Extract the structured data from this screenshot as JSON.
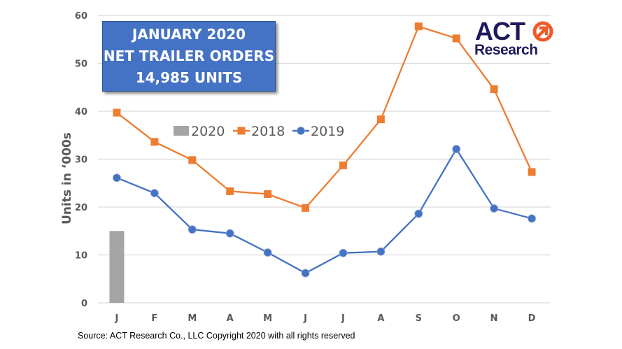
{
  "title_box": {
    "line1": "JANUARY 2020",
    "line2": "NET TRAILER ORDERS",
    "line3": "14,985 UNITS"
  },
  "logo": {
    "top": "ACT",
    "bottom": "Research",
    "navy": "#1f1a5e",
    "orange": "#f05a28"
  },
  "source": "Source: ACT Research Co., LLC  Copyright 2020 with all rights reserved",
  "colors": {
    "series_2020": "#a5a5a5",
    "series_2018": "#ed7d31",
    "series_2019": "#4472c4",
    "grid": "#d9d9d9",
    "title_box": "#4472c4"
  },
  "chart_data": {
    "type": "line",
    "title": "January 2020 Net Trailer Orders 14,985 Units",
    "xlabel": "",
    "ylabel": "Units in ‘000s",
    "categories": [
      "J",
      "F",
      "M",
      "A",
      "M",
      "J",
      "J",
      "A",
      "S",
      "O",
      "N",
      "D"
    ],
    "yticks": [
      "0",
      "10",
      "20",
      "30",
      "40",
      "50",
      "60"
    ],
    "ylim": [
      0,
      60
    ],
    "grid": true,
    "legend_position": "upper-left-inside",
    "legend": [
      "2020",
      "2018",
      "2019"
    ],
    "series": [
      {
        "name": "2020",
        "type": "bar",
        "values": [
          15.0,
          null,
          null,
          null,
          null,
          null,
          null,
          null,
          null,
          null,
          null,
          null
        ]
      },
      {
        "name": "2018",
        "type": "line",
        "marker": "square",
        "values": [
          39.7,
          33.6,
          29.8,
          23.3,
          22.7,
          19.8,
          28.7,
          38.3,
          57.7,
          55.2,
          44.6,
          27.3
        ]
      },
      {
        "name": "2019",
        "type": "line",
        "marker": "circle",
        "values": [
          26.1,
          22.9,
          15.3,
          14.5,
          10.5,
          6.2,
          10.4,
          10.7,
          18.6,
          32.1,
          19.7,
          17.6
        ]
      }
    ]
  }
}
